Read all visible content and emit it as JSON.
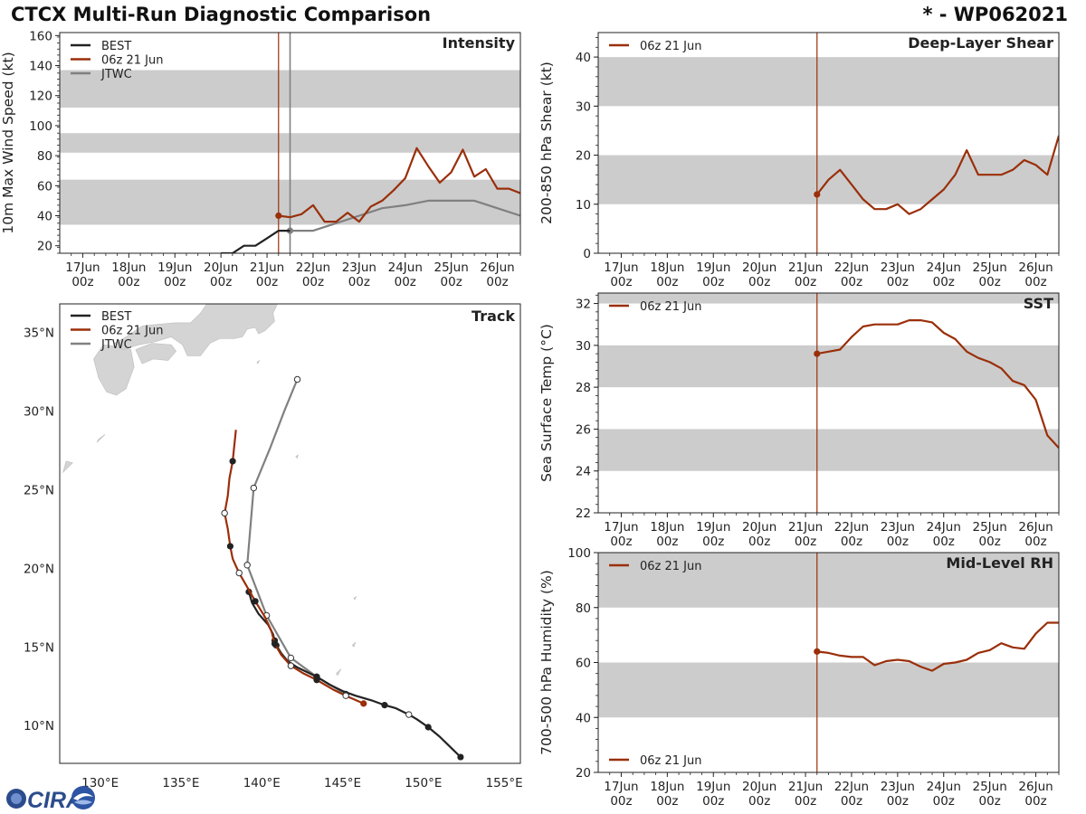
{
  "header": {
    "title": "CTCX Multi-Run Diagnostic Comparison",
    "storm_id": "* - WP062021"
  },
  "logo": {
    "text": "CIRA"
  },
  "colors": {
    "best": "#222222",
    "run": "#9a2f0a",
    "jtwc": "#808080",
    "band": "#cccccc",
    "land": "#d4d4d4",
    "run_line": "#9a2f0a",
    "jtwc_line": "#808080"
  },
  "time_axis": {
    "ticks": [
      {
        "t": 0,
        "day": "17Jun",
        "hour": "00z"
      },
      {
        "t": 1,
        "day": "18Jun",
        "hour": "00z"
      },
      {
        "t": 2,
        "day": "19Jun",
        "hour": "00z"
      },
      {
        "t": 3,
        "day": "20Jun",
        "hour": "00z"
      },
      {
        "t": 4,
        "day": "21Jun",
        "hour": "00z"
      },
      {
        "t": 5,
        "day": "22Jun",
        "hour": "00z"
      },
      {
        "t": 6,
        "day": "23Jun",
        "hour": "00z"
      },
      {
        "t": 7,
        "day": "24Jun",
        "hour": "00z"
      },
      {
        "t": 8,
        "day": "25Jun",
        "hour": "00z"
      },
      {
        "t": 9,
        "day": "26Jun",
        "hour": "00z"
      }
    ],
    "range": [
      -0.5,
      9.5
    ],
    "run_time": 4.25,
    "jtwc_time": 4.5
  },
  "chart_data": [
    {
      "id": "intensity",
      "type": "line",
      "title": "Intensity",
      "ylabel": "10m Max Wind Speed (kt)",
      "ylim": [
        15,
        162
      ],
      "yticks": [
        20,
        40,
        60,
        80,
        100,
        120,
        140,
        160
      ],
      "bands": [
        [
          34,
          64
        ],
        [
          82,
          95
        ],
        [
          112,
          137
        ]
      ],
      "legend": [
        "BEST",
        "06z 21 Jun",
        "JTWC"
      ],
      "series": [
        {
          "name": "BEST",
          "x": [
            3.0,
            3.25,
            3.5,
            3.75,
            4.0,
            4.25,
            4.5
          ],
          "y": [
            15,
            15,
            20,
            20,
            25,
            30,
            30
          ]
        },
        {
          "name": "06z 21 Jun",
          "x": [
            4.25,
            4.5,
            4.75,
            5.0,
            5.25,
            5.5,
            5.75,
            6.0,
            6.25,
            6.5,
            6.75,
            7.0,
            7.25,
            7.5,
            7.75,
            8.0,
            8.25,
            8.5,
            8.75,
            9.0,
            9.25,
            9.5
          ],
          "y": [
            40,
            39,
            41,
            47,
            36,
            36,
            42,
            36,
            46,
            50,
            57,
            65,
            85,
            73,
            62,
            69,
            84,
            66,
            71,
            58,
            58,
            55
          ]
        },
        {
          "name": "JTWC",
          "x": [
            4.5,
            5.0,
            5.5,
            6.0,
            6.5,
            7.0,
            7.5,
            8.0,
            8.5,
            9.0,
            9.5
          ],
          "y": [
            30,
            30,
            35,
            40,
            45,
            47,
            50,
            50,
            50,
            45,
            40
          ]
        }
      ]
    },
    {
      "id": "shear",
      "type": "line",
      "title": "Deep-Layer Shear",
      "ylabel": "200-850 hPa Shear (kt)",
      "ylim": [
        0,
        45
      ],
      "yticks": [
        0,
        10,
        20,
        30,
        40
      ],
      "bands": [
        [
          10,
          20
        ],
        [
          30,
          40
        ]
      ],
      "legend": [
        "06z 21 Jun"
      ],
      "series": [
        {
          "name": "06z 21 Jun",
          "x": [
            4.25,
            4.5,
            4.75,
            5.0,
            5.25,
            5.5,
            5.75,
            6.0,
            6.25,
            6.5,
            6.75,
            7.0,
            7.25,
            7.5,
            7.75,
            8.0,
            8.25,
            8.5,
            8.75,
            9.0,
            9.25,
            9.5
          ],
          "y": [
            12,
            15,
            17,
            14,
            11,
            9,
            9,
            10,
            8,
            9,
            11,
            13,
            16,
            21,
            16,
            16,
            16,
            17,
            19,
            18,
            16,
            24
          ]
        }
      ]
    },
    {
      "id": "sst",
      "type": "line",
      "title": "SST",
      "ylabel": "Sea Surface Temp (°C)",
      "ylim": [
        22,
        32.5
      ],
      "yticks": [
        22,
        24,
        26,
        28,
        30,
        32
      ],
      "bands": [
        [
          24,
          26
        ],
        [
          28,
          30
        ],
        [
          32,
          32.5
        ]
      ],
      "legend": [
        "06z 21 Jun"
      ],
      "series": [
        {
          "name": "06z 21 Jun",
          "x": [
            4.25,
            4.5,
            4.75,
            5.0,
            5.25,
            5.5,
            5.75,
            6.0,
            6.25,
            6.5,
            6.75,
            7.0,
            7.25,
            7.5,
            7.75,
            8.0,
            8.25,
            8.5,
            8.75,
            9.0,
            9.25,
            9.5
          ],
          "y": [
            29.6,
            29.7,
            29.8,
            30.4,
            30.9,
            31.0,
            31.0,
            31.0,
            31.2,
            31.2,
            31.1,
            30.6,
            30.3,
            29.7,
            29.4,
            29.2,
            28.9,
            28.3,
            28.1,
            27.4,
            25.7,
            25.1
          ]
        }
      ]
    },
    {
      "id": "rh",
      "type": "line",
      "title": "Mid-Level RH",
      "ylabel": "700-500 hPa Humidity (%)",
      "ylim": [
        20,
        100
      ],
      "yticks": [
        20,
        40,
        60,
        80,
        100
      ],
      "bands": [
        [
          40,
          60
        ],
        [
          80,
          100
        ]
      ],
      "legend": [
        "06z 21 Jun"
      ],
      "series": [
        {
          "name": "06z 21 Jun",
          "x": [
            4.25,
            4.5,
            4.75,
            5.0,
            5.25,
            5.5,
            5.75,
            6.0,
            6.25,
            6.5,
            6.75,
            7.0,
            7.25,
            7.5,
            7.75,
            8.0,
            8.25,
            8.5,
            8.75,
            9.0,
            9.25,
            9.5
          ],
          "y": [
            64,
            63.5,
            62.5,
            62,
            62,
            59,
            60.5,
            61,
            60.5,
            58.5,
            57,
            59.5,
            60,
            61,
            63.5,
            64.5,
            67,
            65.5,
            65,
            70.5,
            74.5,
            74.5
          ]
        }
      ]
    },
    {
      "id": "track",
      "type": "line",
      "title": "Track",
      "xlim": [
        127.5,
        156
      ],
      "ylim": [
        7.6,
        36.8
      ],
      "xticks": [
        {
          "v": 130,
          "label": "130°E"
        },
        {
          "v": 135,
          "label": "135°E"
        },
        {
          "v": 140,
          "label": "140°E"
        },
        {
          "v": 145,
          "label": "145°E"
        },
        {
          "v": 150,
          "label": "150°E"
        },
        {
          "v": 155,
          "label": "155°E"
        }
      ],
      "yticks": [
        {
          "v": 10,
          "label": "10°N"
        },
        {
          "v": 15,
          "label": "15°N"
        },
        {
          "v": 20,
          "label": "20°N"
        },
        {
          "v": 25,
          "label": "25°N"
        },
        {
          "v": 30,
          "label": "30°N"
        },
        {
          "v": 35,
          "label": "35°N"
        }
      ],
      "legend": [
        "BEST",
        "06z 21 Jun",
        "JTWC"
      ],
      "series": [
        {
          "name": "BEST",
          "lon": [
            152.3,
            151.7,
            151.0,
            150.3,
            149.6,
            149.1,
            148.3,
            147.6,
            146.8,
            145.8,
            145.0,
            144.2,
            143.4,
            142.8,
            142.2,
            141.6,
            141.2,
            140.9,
            140.8,
            140.7,
            140.4,
            139.8,
            139.4,
            139.2
          ],
          "lat": [
            8.0,
            8.6,
            9.3,
            9.9,
            10.4,
            10.7,
            11.1,
            11.3,
            11.6,
            11.9,
            12.2,
            12.6,
            13.1,
            13.4,
            13.7,
            14.1,
            14.6,
            15.1,
            15.4,
            15.8,
            16.4,
            17.1,
            17.8,
            18.5
          ],
          "filled": [
            0,
            3,
            7,
            12,
            17,
            18,
            23
          ],
          "open": [
            5
          ]
        },
        {
          "name": "06z 21 Jun",
          "lon": [
            146.3,
            145.2,
            144.4,
            143.4,
            142.6,
            141.8,
            141.2,
            140.8,
            140.6,
            140.2,
            139.6,
            139.1,
            138.6,
            138.2,
            138.05,
            137.9,
            137.7,
            137.9,
            138.0,
            138.2,
            138.3,
            138.4
          ],
          "lat": [
            11.4,
            11.9,
            12.3,
            12.9,
            13.3,
            13.8,
            14.5,
            15.2,
            16.0,
            16.9,
            17.9,
            18.8,
            19.7,
            20.6,
            21.4,
            22.5,
            23.5,
            24.6,
            25.7,
            26.8,
            27.8,
            28.8
          ],
          "filled": [
            0,
            3,
            7,
            10,
            14,
            19
          ],
          "open": [
            1,
            5,
            12,
            16
          ]
        },
        {
          "name": "JTWC",
          "lon": [
            145.2,
            143.4,
            141.8,
            140.3,
            139.1,
            139.5,
            140.5,
            141.4,
            142.2
          ],
          "lat": [
            12.0,
            13.1,
            14.3,
            17.0,
            20.2,
            25.1,
            27.6,
            30.0,
            32.0
          ],
          "filled": [],
          "open": [
            0,
            1,
            2,
            3,
            4,
            5,
            8
          ]
        }
      ]
    }
  ]
}
